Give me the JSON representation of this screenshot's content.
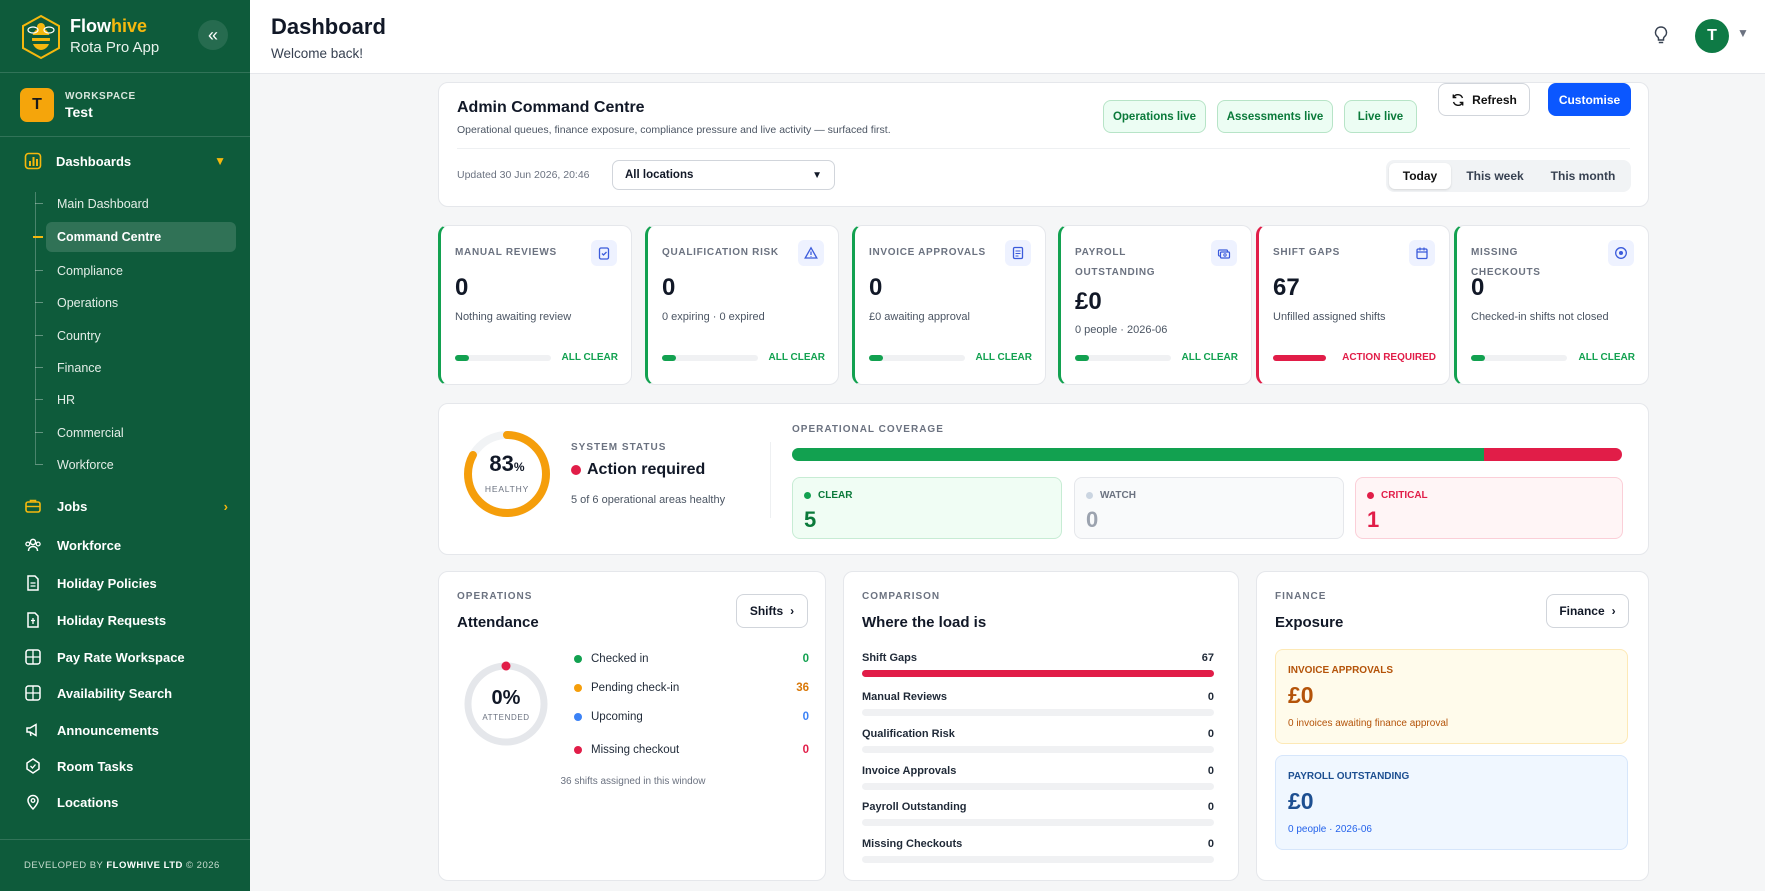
{
  "brand": {
    "name_a": "Flow",
    "name_b": "hive",
    "subtitle": "Rota Pro App"
  },
  "workspace": {
    "label": "WORKSPACE",
    "name": "Test",
    "initial": "T"
  },
  "sidebar": {
    "dashboards_label": "Dashboards",
    "sub_items": [
      "Main Dashboard",
      "Command Centre",
      "Compliance",
      "Operations",
      "Country",
      "Finance",
      "HR",
      "Commercial",
      "Workforce"
    ],
    "nav_items": [
      "Jobs",
      "Workforce",
      "Holiday Policies",
      "Holiday Requests",
      "Pay Rate Workspace",
      "Availability Search",
      "Announcements",
      "Room Tasks",
      "Locations"
    ],
    "footer_a": "DEVELOPED BY ",
    "footer_b": "FLOWHIVE LTD",
    "footer_c": " © 2026"
  },
  "header": {
    "title": "Dashboard",
    "subtitle": "Welcome back!",
    "user_initial": "T"
  },
  "command": {
    "title": "Admin Command Centre",
    "subtitle": "Operational queues, finance exposure, compliance pressure and live activity — surfaced first.",
    "pills": [
      "Operations live",
      "Assessments live",
      "Live live"
    ],
    "refresh_label": "Refresh",
    "customise_label": "Customise",
    "updated": "Updated 30 Jun 2026, 20:46",
    "location_value": "All locations",
    "ranges": [
      "Today",
      "This week",
      "This month"
    ],
    "active_range": "Today"
  },
  "stats": [
    {
      "label": "MANUAL REVIEWS",
      "value": "0",
      "desc": "Nothing awaiting review",
      "status": "ALL CLEAR",
      "icon": "clipboard-check-icon",
      "level": 0.15
    },
    {
      "label": "QUALIFICATION RISK",
      "value": "0",
      "desc": "0 expiring · 0 expired",
      "status": "ALL CLEAR",
      "icon": "warning-triangle-icon",
      "level": 0.15
    },
    {
      "label": "INVOICE APPROVALS",
      "value": "0",
      "desc": "£0 awaiting approval",
      "status": "ALL CLEAR",
      "icon": "document-icon",
      "level": 0.15
    },
    {
      "label": "PAYROLL OUTSTANDING",
      "value": "£0",
      "desc": "0 people · 2026-06",
      "status": "ALL CLEAR",
      "icon": "cash-icon",
      "level": 0.15
    },
    {
      "label": "SHIFT GAPS",
      "value": "67",
      "desc": "Unfilled assigned shifts",
      "status": "ACTION REQUIRED",
      "icon": "calendar-icon",
      "level": 1.0
    },
    {
      "label": "MISSING CHECKOUTS",
      "value": "0",
      "desc": "Checked-in shifts not closed",
      "status": "ALL CLEAR",
      "icon": "target-icon",
      "level": 0.15
    }
  ],
  "system": {
    "percent": "83",
    "percent_sign": "%",
    "health_label": "HEALTHY",
    "label": "SYSTEM STATUS",
    "status": "Action required",
    "desc": "5 of 6 operational areas healthy",
    "coverage_label": "OPERATIONAL COVERAGE",
    "coverage": {
      "clear": 5,
      "watch": 0,
      "critical": 1
    },
    "tiles": [
      {
        "label": "CLEAR",
        "value": "5"
      },
      {
        "label": "WATCH",
        "value": "0"
      },
      {
        "label": "CRITICAL",
        "value": "1"
      }
    ]
  },
  "attendance": {
    "section": "OPERATIONS",
    "title": "Attendance",
    "button": "Shifts",
    "percent": "0%",
    "ring_label": "ATTENDED",
    "rows": [
      {
        "label": "Checked in",
        "value": "0",
        "color": "#12a150"
      },
      {
        "label": "Pending check-in",
        "value": "36",
        "color": "#f59e0b"
      },
      {
        "label": "Upcoming",
        "value": "0",
        "color": "#3b82f6"
      },
      {
        "label": "Missing checkout",
        "value": "0",
        "color": "#e11d48"
      }
    ],
    "footer": "36 shifts assigned in this window"
  },
  "comparison": {
    "section": "COMPARISON",
    "title": "Where the load is",
    "rows": [
      {
        "label": "Shift Gaps",
        "value": "67",
        "level": 1.0
      },
      {
        "label": "Manual Reviews",
        "value": "0",
        "level": 0
      },
      {
        "label": "Qualification Risk",
        "value": "0",
        "level": 0
      },
      {
        "label": "Invoice Approvals",
        "value": "0",
        "level": 0
      },
      {
        "label": "Payroll Outstanding",
        "value": "0",
        "level": 0
      },
      {
        "label": "Missing Checkouts",
        "value": "0",
        "level": 0
      }
    ]
  },
  "finance": {
    "section": "FINANCE",
    "title": "Exposure",
    "button": "Finance",
    "invoice": {
      "label": "INVOICE APPROVALS",
      "value": "£0",
      "desc": "0 invoices awaiting finance approval"
    },
    "payroll": {
      "label": "PAYROLL OUTSTANDING",
      "value": "£0",
      "desc": "0 people · 2026-06"
    }
  },
  "colors": {
    "sidebar": "#0e5b3b",
    "accent": "#f5b80e",
    "primary": "#0b57ff",
    "clear": "#12a150",
    "critical": "#e11d48",
    "pending": "#f59e0b"
  }
}
